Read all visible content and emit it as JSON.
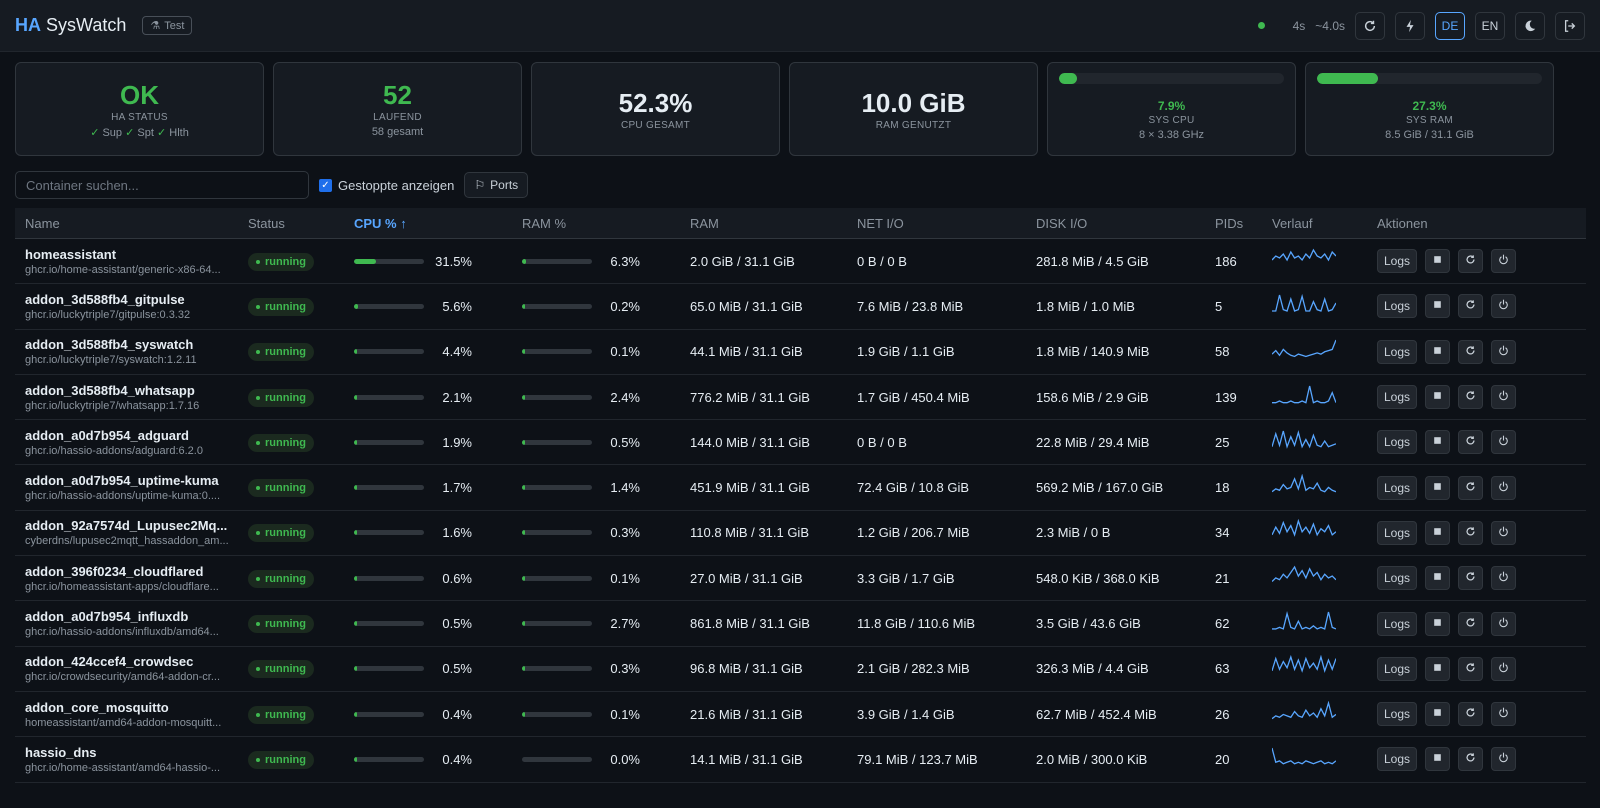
{
  "header": {
    "brand_ha": "HA",
    "brand_name": "SysWatch",
    "test_label": "Test",
    "interval": "4s",
    "latency": "~4.0s",
    "lang_de": "DE",
    "lang_en": "EN"
  },
  "cards": {
    "status": {
      "value": "OK",
      "label": "HA STATUS",
      "checks": [
        "Sup",
        "Spt",
        "Hlth"
      ]
    },
    "running": {
      "value": "52",
      "label": "LAUFEND",
      "sub": "58 gesamt"
    },
    "cpu": {
      "value": "52.3%",
      "label": "CPU GESAMT"
    },
    "ram": {
      "value": "10.0 GiB",
      "label": "RAM GENUTZT"
    },
    "sys_cpu": {
      "pct": "7.9%",
      "fraction": 0.079,
      "label": "SYS CPU",
      "sub": "8 × 3.38 GHz"
    },
    "sys_ram": {
      "pct": "27.3%",
      "fraction": 0.273,
      "label": "SYS RAM",
      "sub": "8.5 GiB / 31.1 GiB"
    }
  },
  "toolbar": {
    "search_placeholder": "Container suchen...",
    "show_stopped": "Gestoppte anzeigen",
    "ports": "Ports"
  },
  "table": {
    "headers": {
      "name": "Name",
      "status": "Status",
      "cpu": "CPU % ↑",
      "ram_pct": "RAM %",
      "ram": "RAM",
      "net": "NET I/O",
      "disk": "DISK I/O",
      "pids": "PIDs",
      "chart": "Verlauf",
      "actions": "Aktionen"
    },
    "logs_label": "Logs",
    "rows": [
      {
        "name": "homeassistant",
        "image": "ghcr.io/home-assistant/generic-x86-64...",
        "status": "running",
        "cpu": "31.5%",
        "cpu_f": 0.315,
        "ram_pct": "6.3%",
        "ram_f": 0.063,
        "ram": "2.0 GiB / 31.1 GiB",
        "net": "0 B / 0 B",
        "disk": "281.8 MiB / 4.5 GiB",
        "pids": "186"
      },
      {
        "name": "addon_3d588fb4_gitpulse",
        "image": "ghcr.io/luckytriple7/gitpulse:0.3.32",
        "status": "running",
        "cpu": "5.6%",
        "cpu_f": 0.056,
        "ram_pct": "0.2%",
        "ram_f": 0.002,
        "ram": "65.0 MiB / 31.1 GiB",
        "net": "7.6 MiB / 23.8 MiB",
        "disk": "1.8 MiB / 1.0 MiB",
        "pids": "5"
      },
      {
        "name": "addon_3d588fb4_syswatch",
        "image": "ghcr.io/luckytriple7/syswatch:1.2.11",
        "status": "running",
        "cpu": "4.4%",
        "cpu_f": 0.044,
        "ram_pct": "0.1%",
        "ram_f": 0.001,
        "ram": "44.1 MiB / 31.1 GiB",
        "net": "1.9 GiB / 1.1 GiB",
        "disk": "1.8 MiB / 140.9 MiB",
        "pids": "58"
      },
      {
        "name": "addon_3d588fb4_whatsapp",
        "image": "ghcr.io/luckytriple7/whatsapp:1.7.16",
        "status": "running",
        "cpu": "2.1%",
        "cpu_f": 0.021,
        "ram_pct": "2.4%",
        "ram_f": 0.024,
        "ram": "776.2 MiB / 31.1 GiB",
        "net": "1.7 GiB / 450.4 MiB",
        "disk": "158.6 MiB / 2.9 GiB",
        "pids": "139"
      },
      {
        "name": "addon_a0d7b954_adguard",
        "image": "ghcr.io/hassio-addons/adguard:6.2.0",
        "status": "running",
        "cpu": "1.9%",
        "cpu_f": 0.019,
        "ram_pct": "0.5%",
        "ram_f": 0.005,
        "ram": "144.0 MiB / 31.1 GiB",
        "net": "0 B / 0 B",
        "disk": "22.8 MiB / 29.4 MiB",
        "pids": "25"
      },
      {
        "name": "addon_a0d7b954_uptime-kuma",
        "image": "ghcr.io/hassio-addons/uptime-kuma:0....",
        "status": "running",
        "cpu": "1.7%",
        "cpu_f": 0.017,
        "ram_pct": "1.4%",
        "ram_f": 0.014,
        "ram": "451.9 MiB / 31.1 GiB",
        "net": "72.4 GiB / 10.8 GiB",
        "disk": "569.2 MiB / 167.0 GiB",
        "pids": "18"
      },
      {
        "name": "addon_92a7574d_Lupusec2Mq...",
        "image": "cyberdns/lupusec2mqtt_hassaddon_am...",
        "status": "running",
        "cpu": "1.6%",
        "cpu_f": 0.016,
        "ram_pct": "0.3%",
        "ram_f": 0.003,
        "ram": "110.8 MiB / 31.1 GiB",
        "net": "1.2 GiB / 206.7 MiB",
        "disk": "2.3 MiB / 0 B",
        "pids": "34"
      },
      {
        "name": "addon_396f0234_cloudflared",
        "image": "ghcr.io/homeassistant-apps/cloudflare...",
        "status": "running",
        "cpu": "0.6%",
        "cpu_f": 0.006,
        "ram_pct": "0.1%",
        "ram_f": 0.001,
        "ram": "27.0 MiB / 31.1 GiB",
        "net": "3.3 GiB / 1.7 GiB",
        "disk": "548.0 KiB / 368.0 KiB",
        "pids": "21"
      },
      {
        "name": "addon_a0d7b954_influxdb",
        "image": "ghcr.io/hassio-addons/influxdb/amd64...",
        "status": "running",
        "cpu": "0.5%",
        "cpu_f": 0.005,
        "ram_pct": "2.7%",
        "ram_f": 0.027,
        "ram": "861.8 MiB / 31.1 GiB",
        "net": "11.8 GiB / 110.6 MiB",
        "disk": "3.5 GiB / 43.6 GiB",
        "pids": "62"
      },
      {
        "name": "addon_424ccef4_crowdsec",
        "image": "ghcr.io/crowdsecurity/amd64-addon-cr...",
        "status": "running",
        "cpu": "0.5%",
        "cpu_f": 0.005,
        "ram_pct": "0.3%",
        "ram_f": 0.003,
        "ram": "96.8 MiB / 31.1 GiB",
        "net": "2.1 GiB / 282.3 MiB",
        "disk": "326.3 MiB / 4.4 GiB",
        "pids": "63"
      },
      {
        "name": "addon_core_mosquitto",
        "image": "homeassistant/amd64-addon-mosquitt...",
        "status": "running",
        "cpu": "0.4%",
        "cpu_f": 0.004,
        "ram_pct": "0.1%",
        "ram_f": 0.001,
        "ram": "21.6 MiB / 31.1 GiB",
        "net": "3.9 GiB / 1.4 GiB",
        "disk": "62.7 MiB / 452.4 MiB",
        "pids": "26"
      },
      {
        "name": "hassio_dns",
        "image": "ghcr.io/home-assistant/amd64-hassio-...",
        "status": "running",
        "cpu": "0.4%",
        "cpu_f": 0.004,
        "ram_pct": "0.0%",
        "ram_f": 0.0,
        "ram": "14.1 MiB / 31.1 GiB",
        "net": "79.1 MiB / 123.7 MiB",
        "disk": "2.0 MiB / 300.0 KiB",
        "pids": "20"
      }
    ]
  },
  "colors": {
    "accent": "#58a6ff",
    "ok": "#3fb950",
    "bg": "#0d1117"
  }
}
